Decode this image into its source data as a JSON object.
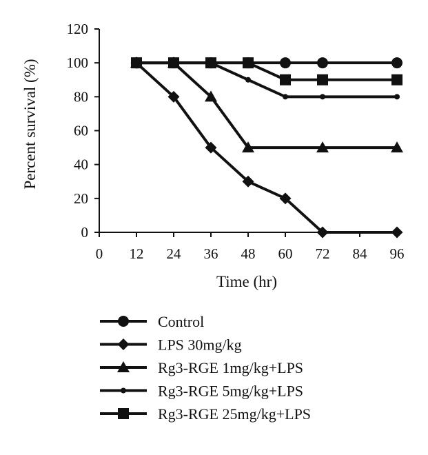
{
  "chart_data": {
    "type": "line",
    "title": "",
    "xlabel": "Time (hr)",
    "ylabel": "Percent survival (%)",
    "xlim": [
      0,
      96
    ],
    "ylim": [
      0,
      120
    ],
    "xticks": [
      0,
      12,
      24,
      36,
      48,
      60,
      72,
      84,
      96
    ],
    "yticks": [
      0,
      20,
      40,
      60,
      80,
      100,
      120
    ],
    "grid": false,
    "legend_position": "bottom",
    "series": [
      {
        "name": "Control",
        "marker": "circle",
        "x": [
          12,
          24,
          36,
          48,
          60,
          72,
          96
        ],
        "y": [
          100,
          100,
          100,
          100,
          100,
          100,
          100
        ]
      },
      {
        "name": "LPS 30mg/kg",
        "marker": "diamond",
        "x": [
          12,
          24,
          36,
          48,
          60,
          72,
          96
        ],
        "y": [
          100,
          80,
          50,
          30,
          20,
          0,
          0
        ]
      },
      {
        "name": "Rg3-RGE 1mg/kg+LPS",
        "marker": "triangle",
        "x": [
          12,
          24,
          36,
          48,
          72,
          96
        ],
        "y": [
          100,
          100,
          80,
          50,
          50,
          50
        ]
      },
      {
        "name": "Rg3-RGE 5mg/kg+LPS",
        "marker": "small-circle",
        "x": [
          12,
          24,
          36,
          48,
          60,
          72,
          96
        ],
        "y": [
          100,
          100,
          100,
          90,
          80,
          80,
          80
        ]
      },
      {
        "name": "Rg3-RGE 25mg/kg+LPS",
        "marker": "square",
        "x": [
          12,
          24,
          36,
          48,
          60,
          72,
          96
        ],
        "y": [
          100,
          100,
          100,
          100,
          90,
          90,
          90
        ]
      }
    ],
    "colors": {
      "line": "#111111",
      "marker": "#111111"
    }
  }
}
